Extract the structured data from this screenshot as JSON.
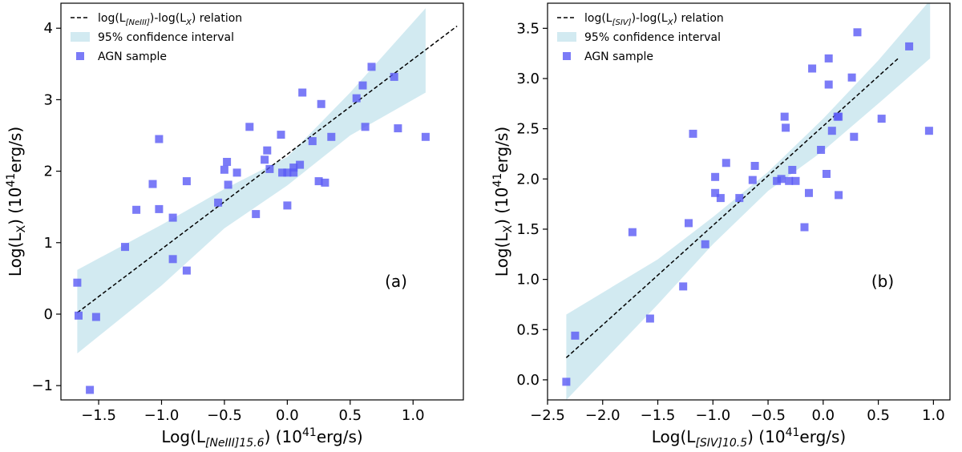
{
  "chart_data": [
    {
      "type": "scatter",
      "panel_label": "(a)",
      "xlabel": {
        "pre": "Log(L",
        "sub": "[NeIII]15.6",
        "post": ") (10",
        "sup": "41",
        "tail": "erg/s)"
      },
      "ylabel": {
        "pre": "Log(L",
        "sub": "X",
        "post": ") (10",
        "sup": "41",
        "tail": "erg/s)"
      },
      "xlim": [
        -1.8,
        1.4
      ],
      "ylim": [
        -1.2,
        4.35
      ],
      "xticks": [
        -1.5,
        -1.0,
        -0.5,
        0.0,
        0.5,
        1.0
      ],
      "xtick_labels": [
        "−1.5",
        "−1.0",
        "−0.5",
        "0.0",
        "0.5",
        "1.0"
      ],
      "yticks": [
        -1,
        0,
        1,
        2,
        3,
        4
      ],
      "ytick_labels": [
        "−1",
        "0",
        "1",
        "2",
        "3",
        "4"
      ],
      "grid": false,
      "legend_placement": "top-left",
      "legend": [
        {
          "kind": "line",
          "pre": "log(L",
          "sub": "[NeIII]",
          "post": ")-log(L",
          "sub2": "X",
          "tail": ") relation"
        },
        {
          "kind": "band",
          "label": "95% confidence interval"
        },
        {
          "kind": "marker",
          "label": "AGN sample"
        }
      ],
      "fit_line": {
        "x": [
          -1.67,
          1.35
        ],
        "y": [
          0.02,
          4.03
        ]
      },
      "confidence_band": {
        "x": [
          -1.67,
          -1.0,
          -0.5,
          0.0,
          0.5,
          1.1
        ],
        "lower": [
          -0.55,
          0.4,
          1.2,
          1.8,
          2.5,
          3.1
        ],
        "upper": [
          0.62,
          1.25,
          1.75,
          2.2,
          3.1,
          4.28
        ]
      },
      "points": {
        "x": [
          -1.67,
          -1.66,
          -1.52,
          -1.57,
          -1.29,
          -1.2,
          -1.07,
          -1.02,
          -1.02,
          -0.91,
          -0.91,
          -0.8,
          -0.8,
          -0.55,
          -0.5,
          -0.48,
          -0.47,
          -0.4,
          -0.3,
          -0.25,
          -0.18,
          -0.16,
          -0.14,
          -0.05,
          -0.04,
          0.0,
          0.0,
          0.05,
          0.05,
          0.1,
          0.12,
          0.2,
          0.25,
          0.27,
          0.3,
          0.35,
          0.55,
          0.6,
          0.62,
          0.67,
          0.85,
          0.88,
          1.1
        ],
        "y": [
          0.44,
          -0.02,
          -0.04,
          -1.06,
          0.94,
          1.46,
          1.82,
          2.45,
          1.47,
          1.35,
          0.77,
          0.61,
          1.86,
          1.56,
          2.02,
          2.13,
          1.81,
          1.98,
          2.62,
          1.4,
          2.16,
          2.29,
          2.03,
          2.51,
          1.98,
          1.98,
          1.52,
          2.05,
          1.98,
          2.09,
          3.1,
          2.42,
          1.86,
          2.94,
          1.84,
          2.48,
          3.02,
          3.2,
          2.62,
          3.46,
          3.32,
          2.6,
          2.48
        ]
      },
      "colors": {
        "band": "#add8e6",
        "marker": "#5a5af5",
        "line": "#000000"
      }
    },
    {
      "type": "scatter",
      "panel_label": "(b)",
      "xlabel": {
        "pre": "Log(L",
        "sub": "[SIV]10.5",
        "post": ") (10",
        "sup": "41",
        "tail": "erg/s)"
      },
      "ylabel": {
        "pre": "Log(L",
        "sub": "X",
        "post": ") (10",
        "sup": "41",
        "tail": "erg/s)"
      },
      "xlim": [
        -2.5,
        1.15
      ],
      "ylim": [
        -0.2,
        3.75
      ],
      "xticks": [
        -2.5,
        -2.0,
        -1.5,
        -1.0,
        -0.5,
        0.0,
        0.5,
        1.0
      ],
      "xtick_labels": [
        "−2.5",
        "−2.0",
        "−1.5",
        "−1.0",
        "−0.5",
        "0.0",
        "0.5",
        "1.0"
      ],
      "yticks": [
        0.0,
        0.5,
        1.0,
        1.5,
        2.0,
        2.5,
        3.0,
        3.5
      ],
      "ytick_labels": [
        "0.0",
        "0.5",
        "1.0",
        "1.5",
        "2.0",
        "2.5",
        "3.0",
        "3.5"
      ],
      "grid": false,
      "legend_placement": "top-left",
      "legend": [
        {
          "kind": "line",
          "pre": "log(L",
          "sub": "[SIV]",
          "post": ")-log(L",
          "sub2": "X",
          "tail": ") relation"
        },
        {
          "kind": "band",
          "label": "95% confidence interval"
        },
        {
          "kind": "marker",
          "label": "AGN sample"
        }
      ],
      "fit_line": {
        "x": [
          -2.33,
          0.68
        ],
        "y": [
          0.22,
          3.2
        ]
      },
      "confidence_band": {
        "x": [
          -2.33,
          -1.5,
          -1.0,
          -0.5,
          0.0,
          0.5,
          0.97
        ],
        "lower": [
          -0.2,
          0.75,
          1.35,
          1.88,
          2.28,
          2.75,
          3.2
        ],
        "upper": [
          0.65,
          1.2,
          1.62,
          2.07,
          2.6,
          3.18,
          3.78
        ]
      },
      "points": {
        "x": [
          -2.33,
          -2.25,
          -1.73,
          -1.57,
          -1.27,
          -1.22,
          -1.18,
          -1.07,
          -0.98,
          -0.98,
          -0.93,
          -0.88,
          -0.76,
          -0.64,
          -0.62,
          -0.42,
          -0.38,
          -0.35,
          -0.34,
          -0.31,
          -0.28,
          -0.25,
          -0.17,
          -0.13,
          -0.1,
          -0.02,
          0.03,
          0.05,
          0.05,
          0.08,
          0.13,
          0.14,
          0.14,
          0.26,
          0.28,
          0.31,
          0.53,
          0.78,
          0.96
        ],
        "y": [
          -0.02,
          0.44,
          1.47,
          0.61,
          0.93,
          1.56,
          2.45,
          1.35,
          2.02,
          1.86,
          1.81,
          2.16,
          1.81,
          1.99,
          2.13,
          1.98,
          2.0,
          2.62,
          2.51,
          1.98,
          2.09,
          1.98,
          1.52,
          1.86,
          3.1,
          2.29,
          2.05,
          2.94,
          3.2,
          2.48,
          2.62,
          2.62,
          1.84,
          3.01,
          2.42,
          3.46,
          2.6,
          3.32,
          2.48
        ]
      },
      "colors": {
        "band": "#add8e6",
        "marker": "#5a5af5",
        "line": "#000000"
      }
    }
  ]
}
